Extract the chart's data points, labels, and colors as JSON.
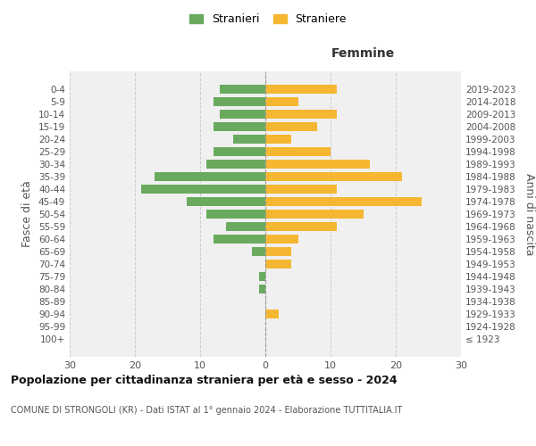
{
  "age_groups": [
    "100+",
    "95-99",
    "90-94",
    "85-89",
    "80-84",
    "75-79",
    "70-74",
    "65-69",
    "60-64",
    "55-59",
    "50-54",
    "45-49",
    "40-44",
    "35-39",
    "30-34",
    "25-29",
    "20-24",
    "15-19",
    "10-14",
    "5-9",
    "0-4"
  ],
  "birth_years": [
    "≤ 1923",
    "1924-1928",
    "1929-1933",
    "1934-1938",
    "1939-1943",
    "1944-1948",
    "1949-1953",
    "1954-1958",
    "1959-1963",
    "1964-1968",
    "1969-1973",
    "1974-1978",
    "1979-1983",
    "1984-1988",
    "1989-1993",
    "1994-1998",
    "1999-2003",
    "2004-2008",
    "2009-2013",
    "2014-2018",
    "2019-2023"
  ],
  "males": [
    0,
    0,
    0,
    0,
    1,
    1,
    0,
    2,
    8,
    6,
    9,
    12,
    19,
    17,
    9,
    8,
    5,
    8,
    7,
    8,
    7
  ],
  "females": [
    0,
    0,
    2,
    0,
    0,
    0,
    4,
    4,
    5,
    11,
    15,
    24,
    11,
    21,
    16,
    10,
    4,
    8,
    11,
    5,
    11
  ],
  "male_color": "#6aaa5e",
  "female_color": "#f5b731",
  "title": "Popolazione per cittadinanza straniera per età e sesso - 2024",
  "subtitle": "COMUNE DI STRONGOLI (KR) - Dati ISTAT al 1° gennaio 2024 - Elaborazione TUTTITALIA.IT",
  "label_right": "Femmine",
  "ylabel_left": "Fasce di età",
  "ylabel_right": "Anni di nascita",
  "legend_males": "Stranieri",
  "legend_females": "Straniere",
  "xlim": 30,
  "bg_color": "#f0f0f0",
  "grid_color": "#cccccc",
  "bar_height": 0.75
}
